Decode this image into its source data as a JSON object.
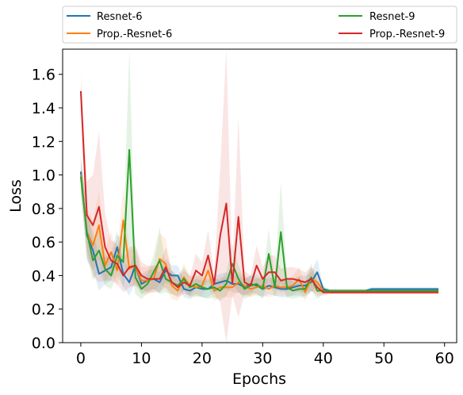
{
  "chart_data": {
    "type": "line",
    "title": "",
    "xlabel": "Epochs",
    "ylabel": "Loss",
    "xlim": [
      -3,
      62
    ],
    "ylim": [
      0,
      1.75
    ],
    "xticks": [
      0,
      10,
      20,
      30,
      40,
      50,
      60
    ],
    "yticks": [
      0.0,
      0.2,
      0.4,
      0.6,
      0.8,
      1.0,
      1.2,
      1.4,
      1.6
    ],
    "xtick_labels": [
      "0",
      "10",
      "20",
      "30",
      "40",
      "50",
      "60"
    ],
    "ytick_labels": [
      "0.0",
      "0.2",
      "0.4",
      "0.6",
      "0.8",
      "1.0",
      "1.2",
      "1.4",
      "1.6"
    ],
    "grid": false,
    "legend_placement": "top, above plot, two columns",
    "x": [
      0,
      1,
      2,
      3,
      4,
      5,
      6,
      7,
      8,
      9,
      10,
      11,
      12,
      13,
      14,
      15,
      16,
      17,
      18,
      19,
      20,
      21,
      22,
      23,
      24,
      25,
      26,
      27,
      28,
      29,
      30,
      31,
      32,
      33,
      34,
      35,
      36,
      37,
      38,
      39,
      40,
      41,
      42,
      43,
      44,
      45,
      46,
      47,
      48,
      49,
      50,
      51,
      52,
      53,
      54,
      55,
      56,
      57,
      58,
      59
    ],
    "series": [
      {
        "name": "Resnet-6",
        "color": "#1f77b4",
        "values": [
          1.02,
          0.64,
          0.55,
          0.41,
          0.43,
          0.45,
          0.57,
          0.41,
          0.36,
          0.46,
          0.35,
          0.37,
          0.38,
          0.36,
          0.43,
          0.4,
          0.4,
          0.32,
          0.31,
          0.33,
          0.32,
          0.32,
          0.35,
          0.36,
          0.37,
          0.35,
          0.35,
          0.33,
          0.35,
          0.34,
          0.32,
          0.34,
          0.33,
          0.32,
          0.32,
          0.33,
          0.34,
          0.34,
          0.36,
          0.42,
          0.32,
          0.31,
          0.31,
          0.31,
          0.31,
          0.31,
          0.31,
          0.31,
          0.32,
          0.32,
          0.32,
          0.32,
          0.32,
          0.32,
          0.32,
          0.32,
          0.32,
          0.32,
          0.32,
          0.32
        ],
        "band": [
          0.1,
          0.15,
          0.12,
          0.1,
          0.08,
          0.08,
          0.1,
          0.08,
          0.08,
          0.1,
          0.06,
          0.06,
          0.06,
          0.06,
          0.07,
          0.06,
          0.06,
          0.05,
          0.05,
          0.05,
          0.05,
          0.05,
          0.05,
          0.05,
          0.05,
          0.05,
          0.05,
          0.05,
          0.05,
          0.05,
          0.05,
          0.05,
          0.05,
          0.05,
          0.05,
          0.05,
          0.06,
          0.06,
          0.06,
          0.08,
          0.02,
          0.01,
          0.01,
          0.01,
          0.01,
          0.01,
          0.01,
          0.01,
          0.01,
          0.01,
          0.01,
          0.01,
          0.01,
          0.01,
          0.01,
          0.01,
          0.01,
          0.01,
          0.01,
          0.01
        ]
      },
      {
        "name": "Prop.-Resnet-6",
        "color": "#ff7f0e",
        "values": [
          1.0,
          0.66,
          0.58,
          0.7,
          0.46,
          0.54,
          0.43,
          0.73,
          0.44,
          0.46,
          0.37,
          0.37,
          0.38,
          0.5,
          0.47,
          0.34,
          0.31,
          0.39,
          0.34,
          0.33,
          0.34,
          0.43,
          0.31,
          0.33,
          0.33,
          0.33,
          0.36,
          0.34,
          0.32,
          0.33,
          0.34,
          0.32,
          0.34,
          0.33,
          0.33,
          0.34,
          0.38,
          0.3,
          0.38,
          0.36,
          0.31,
          0.3,
          0.3,
          0.3,
          0.3,
          0.3,
          0.3,
          0.3,
          0.3,
          0.3,
          0.3,
          0.3,
          0.3,
          0.3,
          0.3,
          0.3,
          0.3,
          0.3,
          0.3,
          0.3
        ],
        "band": [
          0.1,
          0.15,
          0.15,
          0.2,
          0.1,
          0.12,
          0.1,
          0.2,
          0.1,
          0.12,
          0.08,
          0.08,
          0.08,
          0.15,
          0.15,
          0.08,
          0.06,
          0.08,
          0.06,
          0.06,
          0.06,
          0.1,
          0.06,
          0.06,
          0.06,
          0.06,
          0.06,
          0.06,
          0.05,
          0.05,
          0.06,
          0.05,
          0.06,
          0.05,
          0.05,
          0.06,
          0.07,
          0.05,
          0.07,
          0.06,
          0.02,
          0.01,
          0.01,
          0.01,
          0.01,
          0.01,
          0.01,
          0.01,
          0.01,
          0.01,
          0.01,
          0.01,
          0.01,
          0.01,
          0.01,
          0.01,
          0.01,
          0.01,
          0.01,
          0.01
        ]
      },
      {
        "name": "Resnet-9",
        "color": "#2ca02c",
        "values": [
          0.99,
          0.66,
          0.49,
          0.55,
          0.44,
          0.4,
          0.52,
          0.48,
          1.15,
          0.39,
          0.32,
          0.35,
          0.42,
          0.49,
          0.38,
          0.36,
          0.34,
          0.38,
          0.33,
          0.35,
          0.33,
          0.32,
          0.33,
          0.31,
          0.35,
          0.47,
          0.38,
          0.32,
          0.34,
          0.35,
          0.32,
          0.53,
          0.33,
          0.66,
          0.33,
          0.31,
          0.32,
          0.32,
          0.39,
          0.31,
          0.31,
          0.31,
          0.31,
          0.31,
          0.31,
          0.31,
          0.31,
          0.31,
          0.31,
          0.31,
          0.31,
          0.31,
          0.31,
          0.31,
          0.31,
          0.31,
          0.31,
          0.31,
          0.31,
          0.31
        ],
        "band": [
          0.1,
          0.15,
          0.12,
          0.12,
          0.1,
          0.08,
          0.12,
          0.15,
          0.65,
          0.1,
          0.06,
          0.06,
          0.1,
          0.2,
          0.08,
          0.07,
          0.06,
          0.07,
          0.06,
          0.06,
          0.06,
          0.06,
          0.06,
          0.06,
          0.07,
          0.12,
          0.08,
          0.06,
          0.06,
          0.06,
          0.06,
          0.15,
          0.06,
          0.3,
          0.06,
          0.05,
          0.05,
          0.05,
          0.08,
          0.05,
          0.02,
          0.01,
          0.01,
          0.01,
          0.01,
          0.01,
          0.01,
          0.01,
          0.01,
          0.01,
          0.01,
          0.01,
          0.01,
          0.01,
          0.01,
          0.01,
          0.01,
          0.01,
          0.01,
          0.01
        ]
      },
      {
        "name": "Prop.-Resnet-9",
        "color": "#d62728",
        "values": [
          1.5,
          0.76,
          0.7,
          0.81,
          0.57,
          0.49,
          0.47,
          0.4,
          0.45,
          0.46,
          0.4,
          0.38,
          0.38,
          0.38,
          0.45,
          0.36,
          0.33,
          0.36,
          0.34,
          0.43,
          0.4,
          0.52,
          0.35,
          0.64,
          0.83,
          0.35,
          0.75,
          0.36,
          0.34,
          0.46,
          0.38,
          0.42,
          0.42,
          0.37,
          0.38,
          0.38,
          0.37,
          0.36,
          0.38,
          0.33,
          0.3,
          0.3,
          0.3,
          0.3,
          0.3,
          0.3,
          0.3,
          0.3,
          0.3,
          0.3,
          0.3,
          0.3,
          0.3,
          0.3,
          0.3,
          0.3,
          0.3,
          0.3,
          0.3,
          0.3
        ],
        "band": [
          0.1,
          0.2,
          0.3,
          0.45,
          0.2,
          0.12,
          0.12,
          0.1,
          0.12,
          0.12,
          0.08,
          0.08,
          0.08,
          0.08,
          0.12,
          0.07,
          0.06,
          0.07,
          0.06,
          0.1,
          0.08,
          0.15,
          0.06,
          0.4,
          0.95,
          0.07,
          0.6,
          0.07,
          0.06,
          0.12,
          0.07,
          0.1,
          0.1,
          0.07,
          0.07,
          0.07,
          0.07,
          0.06,
          0.07,
          0.05,
          0.02,
          0.01,
          0.01,
          0.01,
          0.01,
          0.01,
          0.01,
          0.01,
          0.01,
          0.01,
          0.01,
          0.01,
          0.01,
          0.01,
          0.01,
          0.01,
          0.01,
          0.01,
          0.01,
          0.01
        ]
      }
    ]
  }
}
